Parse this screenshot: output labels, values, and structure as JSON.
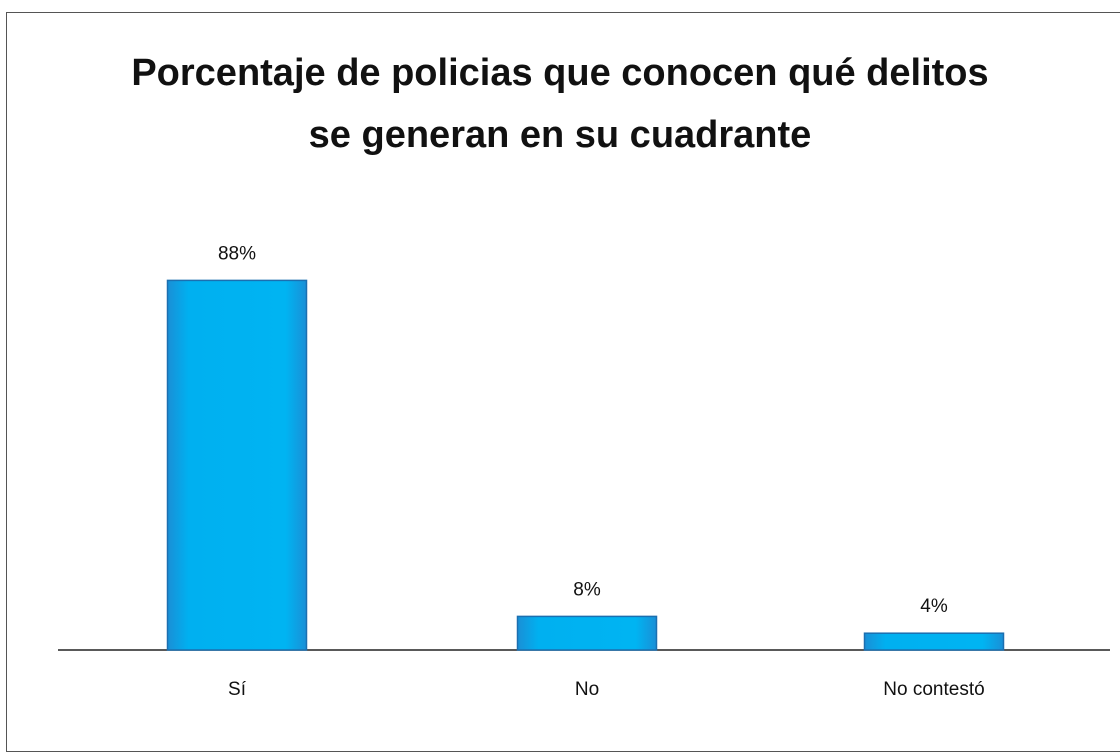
{
  "chart_data": {
    "type": "bar",
    "title": "Porcentaje de policias que conocen qué delitos se generan en su cuadrante",
    "categories": [
      "Sí",
      "No",
      "No contestó"
    ],
    "values": [
      88,
      8,
      4
    ],
    "value_labels": [
      "88%",
      "8%",
      "4%"
    ],
    "color": "#00b0f0"
  }
}
